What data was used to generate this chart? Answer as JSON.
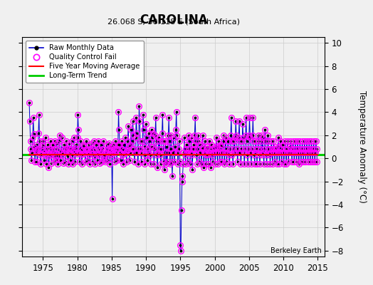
{
  "title": "CAROLINA",
  "subtitle": "26.068 S, 30.118 E (South Africa)",
  "ylabel": "Temperature Anomaly (°C)",
  "credit": "Berkeley Earth",
  "xlim": [
    1972,
    2016
  ],
  "ylim": [
    -8.5,
    10.5
  ],
  "yticks": [
    -8,
    -6,
    -4,
    -2,
    0,
    2,
    4,
    6,
    8,
    10
  ],
  "xticks": [
    1975,
    1980,
    1985,
    1990,
    1995,
    2000,
    2005,
    2010,
    2015
  ],
  "bg_color": "#f0f0f0",
  "raw_color": "#0000cc",
  "qc_color": "#ff00ff",
  "ma_color": "#ff0000",
  "trend_color": "#00cc00",
  "trend_y": 0.3,
  "raw_monthly": [
    [
      1973.0,
      4.8
    ],
    [
      1973.08,
      3.2
    ],
    [
      1973.17,
      1.5
    ],
    [
      1973.25,
      0.8
    ],
    [
      1973.33,
      -0.2
    ],
    [
      1973.42,
      0.5
    ],
    [
      1973.5,
      1.8
    ],
    [
      1973.58,
      3.5
    ],
    [
      1973.67,
      2.1
    ],
    [
      1973.75,
      1.0
    ],
    [
      1973.83,
      -0.3
    ],
    [
      1973.92,
      0.7
    ],
    [
      1974.0,
      1.2
    ],
    [
      1974.08,
      0.5
    ],
    [
      1974.17,
      -0.3
    ],
    [
      1974.25,
      0.8
    ],
    [
      1974.33,
      2.2
    ],
    [
      1974.42,
      3.8
    ],
    [
      1974.5,
      1.5
    ],
    [
      1974.58,
      0.3
    ],
    [
      1974.67,
      -0.5
    ],
    [
      1974.75,
      0.9
    ],
    [
      1974.83,
      0.4
    ],
    [
      1974.92,
      1.1
    ],
    [
      1975.0,
      1.5
    ],
    [
      1975.08,
      0.7
    ],
    [
      1975.17,
      -0.2
    ],
    [
      1975.25,
      0.5
    ],
    [
      1975.33,
      1.8
    ],
    [
      1975.42,
      0.3
    ],
    [
      1975.5,
      -0.5
    ],
    [
      1975.58,
      0.8
    ],
    [
      1975.67,
      1.2
    ],
    [
      1975.75,
      0.4
    ],
    [
      1975.83,
      -0.8
    ],
    [
      1975.92,
      0.2
    ],
    [
      1976.0,
      0.9
    ],
    [
      1976.08,
      1.5
    ],
    [
      1976.17,
      0.3
    ],
    [
      1976.25,
      -0.4
    ],
    [
      1976.33,
      0.7
    ],
    [
      1976.42,
      1.2
    ],
    [
      1976.5,
      0.5
    ],
    [
      1976.58,
      -0.3
    ],
    [
      1976.67,
      0.8
    ],
    [
      1976.75,
      1.5
    ],
    [
      1976.83,
      0.2
    ],
    [
      1976.92,
      -0.1
    ],
    [
      1977.0,
      1.3
    ],
    [
      1977.08,
      0.8
    ],
    [
      1977.17,
      -0.5
    ],
    [
      1977.25,
      0.2
    ],
    [
      1977.33,
      1.5
    ],
    [
      1977.42,
      2.0
    ],
    [
      1977.5,
      0.7
    ],
    [
      1977.58,
      -0.2
    ],
    [
      1977.67,
      0.5
    ],
    [
      1977.75,
      1.8
    ],
    [
      1977.83,
      0.3
    ],
    [
      1977.92,
      -0.4
    ],
    [
      1978.0,
      0.5
    ],
    [
      1978.08,
      1.2
    ],
    [
      1978.17,
      0.8
    ],
    [
      1978.25,
      -0.3
    ],
    [
      1978.33,
      0.6
    ],
    [
      1978.42,
      1.5
    ],
    [
      1978.5,
      0.9
    ],
    [
      1978.58,
      0.2
    ],
    [
      1978.67,
      -0.5
    ],
    [
      1978.75,
      0.8
    ],
    [
      1978.83,
      1.3
    ],
    [
      1978.92,
      0.5
    ],
    [
      1979.0,
      -0.2
    ],
    [
      1979.08,
      0.8
    ],
    [
      1979.17,
      1.5
    ],
    [
      1979.25,
      0.3
    ],
    [
      1979.33,
      -0.5
    ],
    [
      1979.42,
      0.7
    ],
    [
      1979.5,
      1.8
    ],
    [
      1979.58,
      0.5
    ],
    [
      1979.67,
      -0.3
    ],
    [
      1979.75,
      0.9
    ],
    [
      1979.83,
      1.2
    ],
    [
      1979.92,
      0.4
    ],
    [
      1980.0,
      1.8
    ],
    [
      1980.08,
      3.8
    ],
    [
      1980.17,
      2.5
    ],
    [
      1980.25,
      0.5
    ],
    [
      1980.33,
      -0.3
    ],
    [
      1980.42,
      0.8
    ],
    [
      1980.5,
      1.5
    ],
    [
      1980.58,
      0.3
    ],
    [
      1980.67,
      -0.5
    ],
    [
      1980.75,
      0.7
    ],
    [
      1980.83,
      1.2
    ],
    [
      1980.92,
      0.4
    ],
    [
      1981.0,
      1.0
    ],
    [
      1981.08,
      0.5
    ],
    [
      1981.17,
      -0.3
    ],
    [
      1981.25,
      0.7
    ],
    [
      1981.33,
      1.5
    ],
    [
      1981.42,
      0.8
    ],
    [
      1981.5,
      -0.2
    ],
    [
      1981.58,
      0.5
    ],
    [
      1981.67,
      1.2
    ],
    [
      1981.75,
      0.3
    ],
    [
      1981.83,
      -0.5
    ],
    [
      1981.92,
      0.8
    ],
    [
      1982.0,
      0.6
    ],
    [
      1982.08,
      1.3
    ],
    [
      1982.17,
      0.4
    ],
    [
      1982.25,
      -0.3
    ],
    [
      1982.33,
      0.8
    ],
    [
      1982.42,
      1.5
    ],
    [
      1982.5,
      0.2
    ],
    [
      1982.58,
      -0.5
    ],
    [
      1982.67,
      0.7
    ],
    [
      1982.75,
      1.2
    ],
    [
      1982.83,
      0.4
    ],
    [
      1982.92,
      -0.2
    ],
    [
      1983.0,
      0.8
    ],
    [
      1983.08,
      1.5
    ],
    [
      1983.17,
      0.3
    ],
    [
      1983.25,
      -0.4
    ],
    [
      1983.33,
      0.7
    ],
    [
      1983.42,
      1.2
    ],
    [
      1983.5,
      0.5
    ],
    [
      1983.58,
      -0.3
    ],
    [
      1983.67,
      0.8
    ],
    [
      1983.75,
      1.5
    ],
    [
      1983.83,
      0.2
    ],
    [
      1983.92,
      -0.1
    ],
    [
      1984.0,
      0.4
    ],
    [
      1984.08,
      -0.3
    ],
    [
      1984.17,
      0.7
    ],
    [
      1984.25,
      1.2
    ],
    [
      1984.33,
      0.5
    ],
    [
      1984.42,
      -0.2
    ],
    [
      1984.5,
      0.8
    ],
    [
      1984.58,
      1.3
    ],
    [
      1984.67,
      0.4
    ],
    [
      1984.75,
      -0.5
    ],
    [
      1984.83,
      0.7
    ],
    [
      1984.92,
      1.0
    ],
    [
      1985.0,
      0.3
    ],
    [
      1985.08,
      -3.5
    ],
    [
      1985.17,
      0.5
    ],
    [
      1985.25,
      1.2
    ],
    [
      1985.33,
      0.8
    ],
    [
      1985.42,
      -0.3
    ],
    [
      1985.5,
      0.5
    ],
    [
      1985.58,
      1.5
    ],
    [
      1985.67,
      0.7
    ],
    [
      1985.75,
      -0.2
    ],
    [
      1985.83,
      0.8
    ],
    [
      1985.92,
      1.2
    ],
    [
      1986.0,
      4.0
    ],
    [
      1986.08,
      2.5
    ],
    [
      1986.17,
      1.2
    ],
    [
      1986.25,
      0.5
    ],
    [
      1986.33,
      -0.2
    ],
    [
      1986.42,
      0.8
    ],
    [
      1986.5,
      1.5
    ],
    [
      1986.58,
      0.3
    ],
    [
      1986.67,
      -0.5
    ],
    [
      1986.75,
      0.7
    ],
    [
      1986.83,
      1.2
    ],
    [
      1986.92,
      0.4
    ],
    [
      1987.0,
      1.8
    ],
    [
      1987.08,
      0.5
    ],
    [
      1987.17,
      -0.3
    ],
    [
      1987.25,
      0.7
    ],
    [
      1987.33,
      1.5
    ],
    [
      1987.42,
      2.8
    ],
    [
      1987.5,
      1.0
    ],
    [
      1987.58,
      -0.2
    ],
    [
      1987.67,
      0.5
    ],
    [
      1987.75,
      1.2
    ],
    [
      1987.83,
      2.5
    ],
    [
      1987.92,
      0.8
    ],
    [
      1988.0,
      1.5
    ],
    [
      1988.08,
      3.2
    ],
    [
      1988.17,
      2.0
    ],
    [
      1988.25,
      0.8
    ],
    [
      1988.33,
      -0.3
    ],
    [
      1988.42,
      0.5
    ],
    [
      1988.5,
      1.8
    ],
    [
      1988.58,
      3.5
    ],
    [
      1988.67,
      2.2
    ],
    [
      1988.75,
      0.5
    ],
    [
      1988.83,
      -0.5
    ],
    [
      1988.92,
      0.8
    ],
    [
      1989.0,
      4.5
    ],
    [
      1989.08,
      3.2
    ],
    [
      1989.17,
      1.5
    ],
    [
      1989.25,
      0.5
    ],
    [
      1989.33,
      -0.3
    ],
    [
      1989.42,
      0.8
    ],
    [
      1989.5,
      1.5
    ],
    [
      1989.58,
      3.8
    ],
    [
      1989.67,
      2.5
    ],
    [
      1989.75,
      1.0
    ],
    [
      1989.83,
      -0.5
    ],
    [
      1989.92,
      0.3
    ],
    [
      1990.0,
      3.0
    ],
    [
      1990.08,
      1.8
    ],
    [
      1990.17,
      0.8
    ],
    [
      1990.25,
      -0.2
    ],
    [
      1990.33,
      0.5
    ],
    [
      1990.42,
      2.2
    ],
    [
      1990.5,
      1.5
    ],
    [
      1990.58,
      0.3
    ],
    [
      1990.67,
      -0.5
    ],
    [
      1990.75,
      1.0
    ],
    [
      1990.83,
      2.5
    ],
    [
      1990.92,
      1.8
    ],
    [
      1991.0,
      2.2
    ],
    [
      1991.08,
      1.0
    ],
    [
      1991.17,
      -0.5
    ],
    [
      1991.25,
      0.8
    ],
    [
      1991.33,
      2.0
    ],
    [
      1991.42,
      3.5
    ],
    [
      1991.5,
      1.5
    ],
    [
      1991.58,
      0.3
    ],
    [
      1991.67,
      -0.8
    ],
    [
      1991.75,
      0.5
    ],
    [
      1991.83,
      1.8
    ],
    [
      1991.92,
      0.8
    ],
    [
      1992.0,
      1.5
    ],
    [
      1992.08,
      0.3
    ],
    [
      1992.17,
      -0.5
    ],
    [
      1992.25,
      0.8
    ],
    [
      1992.33,
      2.2
    ],
    [
      1992.42,
      3.8
    ],
    [
      1992.5,
      1.5
    ],
    [
      1992.58,
      -0.3
    ],
    [
      1992.67,
      -1.0
    ],
    [
      1992.75,
      0.5
    ],
    [
      1992.83,
      1.5
    ],
    [
      1992.92,
      -0.5
    ],
    [
      1993.0,
      1.0
    ],
    [
      1993.08,
      -0.3
    ],
    [
      1993.17,
      0.5
    ],
    [
      1993.25,
      2.0
    ],
    [
      1993.33,
      3.5
    ],
    [
      1993.42,
      1.5
    ],
    [
      1993.5,
      -0.5
    ],
    [
      1993.58,
      0.8
    ],
    [
      1993.67,
      2.0
    ],
    [
      1993.75,
      -0.3
    ],
    [
      1993.83,
      -1.5
    ],
    [
      1993.92,
      0.5
    ],
    [
      1994.0,
      1.8
    ],
    [
      1994.08,
      0.5
    ],
    [
      1994.17,
      -0.3
    ],
    [
      1994.25,
      1.0
    ],
    [
      1994.33,
      2.5
    ],
    [
      1994.42,
      4.0
    ],
    [
      1994.5,
      2.0
    ],
    [
      1994.58,
      0.5
    ],
    [
      1994.67,
      -0.5
    ],
    [
      1994.75,
      0.8
    ],
    [
      1994.83,
      1.5
    ],
    [
      1994.92,
      -0.3
    ],
    [
      1995.0,
      -7.5
    ],
    [
      1995.08,
      -8.0
    ],
    [
      1995.17,
      -4.5
    ],
    [
      1995.25,
      -2.0
    ],
    [
      1995.33,
      -1.5
    ],
    [
      1995.42,
      -0.5
    ],
    [
      1995.5,
      0.5
    ],
    [
      1995.58,
      1.8
    ],
    [
      1995.67,
      0.3
    ],
    [
      1995.75,
      -0.5
    ],
    [
      1995.83,
      0.8
    ],
    [
      1995.92,
      1.2
    ],
    [
      1996.0,
      0.5
    ],
    [
      1996.08,
      -0.3
    ],
    [
      1996.17,
      0.8
    ],
    [
      1996.25,
      2.0
    ],
    [
      1996.33,
      1.5
    ],
    [
      1996.42,
      -0.5
    ],
    [
      1996.5,
      0.5
    ],
    [
      1996.58,
      1.8
    ],
    [
      1996.67,
      0.3
    ],
    [
      1996.75,
      -1.0
    ],
    [
      1996.83,
      0.8
    ],
    [
      1996.92,
      1.2
    ],
    [
      1997.0,
      0.8
    ],
    [
      1997.08,
      2.0
    ],
    [
      1997.17,
      3.5
    ],
    [
      1997.25,
      1.5
    ],
    [
      1997.33,
      0.3
    ],
    [
      1997.42,
      -0.5
    ],
    [
      1997.5,
      0.8
    ],
    [
      1997.58,
      2.0
    ],
    [
      1997.67,
      1.5
    ],
    [
      1997.75,
      -0.3
    ],
    [
      1997.83,
      0.5
    ],
    [
      1997.92,
      1.2
    ],
    [
      1998.0,
      0.5
    ],
    [
      1998.08,
      -0.5
    ],
    [
      1998.17,
      0.8
    ],
    [
      1998.25,
      2.0
    ],
    [
      1998.33,
      1.0
    ],
    [
      1998.42,
      -0.8
    ],
    [
      1998.5,
      0.5
    ],
    [
      1998.58,
      1.5
    ],
    [
      1998.67,
      0.3
    ],
    [
      1998.75,
      -0.5
    ],
    [
      1998.83,
      0.8
    ],
    [
      1998.92,
      1.0
    ],
    [
      1999.0,
      0.3
    ],
    [
      1999.08,
      -0.5
    ],
    [
      1999.17,
      0.8
    ],
    [
      1999.25,
      1.5
    ],
    [
      1999.33,
      0.5
    ],
    [
      1999.42,
      -0.8
    ],
    [
      1999.5,
      0.3
    ],
    [
      1999.58,
      1.2
    ],
    [
      1999.67,
      0.8
    ],
    [
      1999.75,
      -0.3
    ],
    [
      1999.83,
      0.5
    ],
    [
      1999.92,
      1.0
    ],
    [
      2000.0,
      0.8
    ],
    [
      2000.08,
      -0.5
    ],
    [
      2000.17,
      0.5
    ],
    [
      2000.25,
      1.8
    ],
    [
      2000.33,
      1.0
    ],
    [
      2000.42,
      -0.5
    ],
    [
      2000.5,
      0.5
    ],
    [
      2000.58,
      1.5
    ],
    [
      2000.67,
      0.8
    ],
    [
      2000.75,
      -0.3
    ],
    [
      2000.83,
      0.5
    ],
    [
      2000.92,
      1.2
    ],
    [
      2001.0,
      1.0
    ],
    [
      2001.08,
      -0.3
    ],
    [
      2001.17,
      0.5
    ],
    [
      2001.25,
      2.0
    ],
    [
      2001.33,
      1.5
    ],
    [
      2001.42,
      -0.5
    ],
    [
      2001.5,
      0.5
    ],
    [
      2001.58,
      1.8
    ],
    [
      2001.67,
      0.8
    ],
    [
      2001.75,
      -0.3
    ],
    [
      2001.83,
      0.5
    ],
    [
      2001.92,
      1.5
    ],
    [
      2002.0,
      1.5
    ],
    [
      2002.08,
      0.3
    ],
    [
      2002.17,
      -0.5
    ],
    [
      2002.25,
      0.8
    ],
    [
      2002.33,
      2.0
    ],
    [
      2002.42,
      3.5
    ],
    [
      2002.5,
      1.5
    ],
    [
      2002.58,
      0.3
    ],
    [
      2002.67,
      -0.5
    ],
    [
      2002.75,
      0.8
    ],
    [
      2002.83,
      1.5
    ],
    [
      2002.92,
      0.5
    ],
    [
      2003.0,
      1.8
    ],
    [
      2003.08,
      3.2
    ],
    [
      2003.17,
      2.0
    ],
    [
      2003.25,
      0.8
    ],
    [
      2003.33,
      -0.3
    ],
    [
      2003.42,
      0.5
    ],
    [
      2003.5,
      1.8
    ],
    [
      2003.58,
      3.2
    ],
    [
      2003.67,
      1.5
    ],
    [
      2003.75,
      0.5
    ],
    [
      2003.83,
      -0.5
    ],
    [
      2003.92,
      0.8
    ],
    [
      2004.0,
      1.5
    ],
    [
      2004.08,
      3.0
    ],
    [
      2004.17,
      1.8
    ],
    [
      2004.25,
      0.5
    ],
    [
      2004.33,
      -0.5
    ],
    [
      2004.42,
      0.8
    ],
    [
      2004.5,
      2.0
    ],
    [
      2004.58,
      3.5
    ],
    [
      2004.67,
      1.5
    ],
    [
      2004.75,
      0.3
    ],
    [
      2004.83,
      -0.5
    ],
    [
      2004.92,
      0.8
    ],
    [
      2005.0,
      2.0
    ],
    [
      2005.08,
      3.5
    ],
    [
      2005.17,
      1.8
    ],
    [
      2005.25,
      0.5
    ],
    [
      2005.33,
      -0.5
    ],
    [
      2005.42,
      0.8
    ],
    [
      2005.5,
      2.0
    ],
    [
      2005.58,
      3.5
    ],
    [
      2005.67,
      1.5
    ],
    [
      2005.75,
      0.3
    ],
    [
      2005.83,
      -0.5
    ],
    [
      2005.92,
      0.8
    ],
    [
      2006.0,
      1.5
    ],
    [
      2006.08,
      0.5
    ],
    [
      2006.17,
      -0.5
    ],
    [
      2006.25,
      0.8
    ],
    [
      2006.33,
      2.0
    ],
    [
      2006.42,
      1.5
    ],
    [
      2006.5,
      0.3
    ],
    [
      2006.58,
      -0.5
    ],
    [
      2006.67,
      0.8
    ],
    [
      2006.75,
      2.0
    ],
    [
      2006.83,
      1.5
    ],
    [
      2006.92,
      0.3
    ],
    [
      2007.0,
      1.8
    ],
    [
      2007.08,
      0.5
    ],
    [
      2007.17,
      -0.5
    ],
    [
      2007.25,
      0.8
    ],
    [
      2007.33,
      2.5
    ],
    [
      2007.42,
      1.5
    ],
    [
      2007.5,
      0.3
    ],
    [
      2007.58,
      -0.5
    ],
    [
      2007.67,
      0.8
    ],
    [
      2007.75,
      2.0
    ],
    [
      2007.83,
      1.5
    ],
    [
      2007.92,
      0.3
    ],
    [
      2008.0,
      0.8
    ],
    [
      2008.08,
      -0.5
    ],
    [
      2008.17,
      0.5
    ],
    [
      2008.25,
      1.5
    ],
    [
      2008.33,
      0.8
    ],
    [
      2008.42,
      -0.5
    ],
    [
      2008.5,
      0.5
    ],
    [
      2008.58,
      1.5
    ],
    [
      2008.67,
      0.8
    ],
    [
      2008.75,
      -0.3
    ],
    [
      2008.83,
      0.5
    ],
    [
      2008.92,
      1.0
    ],
    [
      2009.0,
      0.8
    ],
    [
      2009.08,
      -0.5
    ],
    [
      2009.17,
      0.5
    ],
    [
      2009.25,
      1.8
    ],
    [
      2009.33,
      1.0
    ],
    [
      2009.42,
      -0.5
    ],
    [
      2009.5,
      0.5
    ],
    [
      2009.58,
      1.5
    ],
    [
      2009.67,
      0.8
    ],
    [
      2009.75,
      -0.3
    ],
    [
      2009.83,
      0.5
    ],
    [
      2009.92,
      1.2
    ],
    [
      2010.0,
      0.5
    ],
    [
      2010.08,
      -0.5
    ],
    [
      2010.17,
      0.5
    ],
    [
      2010.25,
      1.5
    ],
    [
      2010.33,
      0.8
    ],
    [
      2010.42,
      -0.5
    ],
    [
      2010.5,
      0.5
    ],
    [
      2010.58,
      1.5
    ],
    [
      2010.67,
      0.8
    ],
    [
      2010.75,
      -0.3
    ],
    [
      2010.83,
      0.5
    ],
    [
      2010.92,
      1.0
    ],
    [
      2011.0,
      0.5
    ],
    [
      2011.08,
      1.5
    ],
    [
      2011.17,
      0.8
    ],
    [
      2011.25,
      -0.3
    ],
    [
      2011.33,
      0.5
    ],
    [
      2011.42,
      1.5
    ],
    [
      2011.5,
      0.8
    ],
    [
      2011.58,
      -0.3
    ],
    [
      2011.67,
      0.5
    ],
    [
      2011.75,
      1.5
    ],
    [
      2011.83,
      0.8
    ],
    [
      2011.92,
      -0.3
    ],
    [
      2012.0,
      0.5
    ],
    [
      2012.08,
      1.5
    ],
    [
      2012.17,
      0.8
    ],
    [
      2012.25,
      -0.5
    ],
    [
      2012.33,
      0.5
    ],
    [
      2012.42,
      1.5
    ],
    [
      2012.5,
      0.8
    ],
    [
      2012.58,
      -0.3
    ],
    [
      2012.67,
      0.5
    ],
    [
      2012.75,
      1.5
    ],
    [
      2012.83,
      0.8
    ],
    [
      2012.92,
      -0.3
    ],
    [
      2013.0,
      0.5
    ],
    [
      2013.08,
      1.5
    ],
    [
      2013.17,
      0.8
    ],
    [
      2013.25,
      -0.3
    ],
    [
      2013.33,
      0.5
    ],
    [
      2013.42,
      1.5
    ],
    [
      2013.5,
      0.8
    ],
    [
      2013.58,
      -0.3
    ],
    [
      2013.67,
      0.5
    ],
    [
      2013.75,
      1.5
    ],
    [
      2013.83,
      0.8
    ],
    [
      2013.92,
      -0.3
    ],
    [
      2014.0,
      0.5
    ],
    [
      2014.08,
      1.5
    ],
    [
      2014.17,
      0.8
    ],
    [
      2014.25,
      -0.3
    ],
    [
      2014.33,
      0.5
    ],
    [
      2014.42,
      1.5
    ],
    [
      2014.5,
      0.8
    ],
    [
      2014.58,
      -0.3
    ],
    [
      2014.67,
      0.5
    ],
    [
      2014.75,
      1.5
    ],
    [
      2014.83,
      0.8
    ],
    [
      2014.92,
      -0.3
    ]
  ]
}
